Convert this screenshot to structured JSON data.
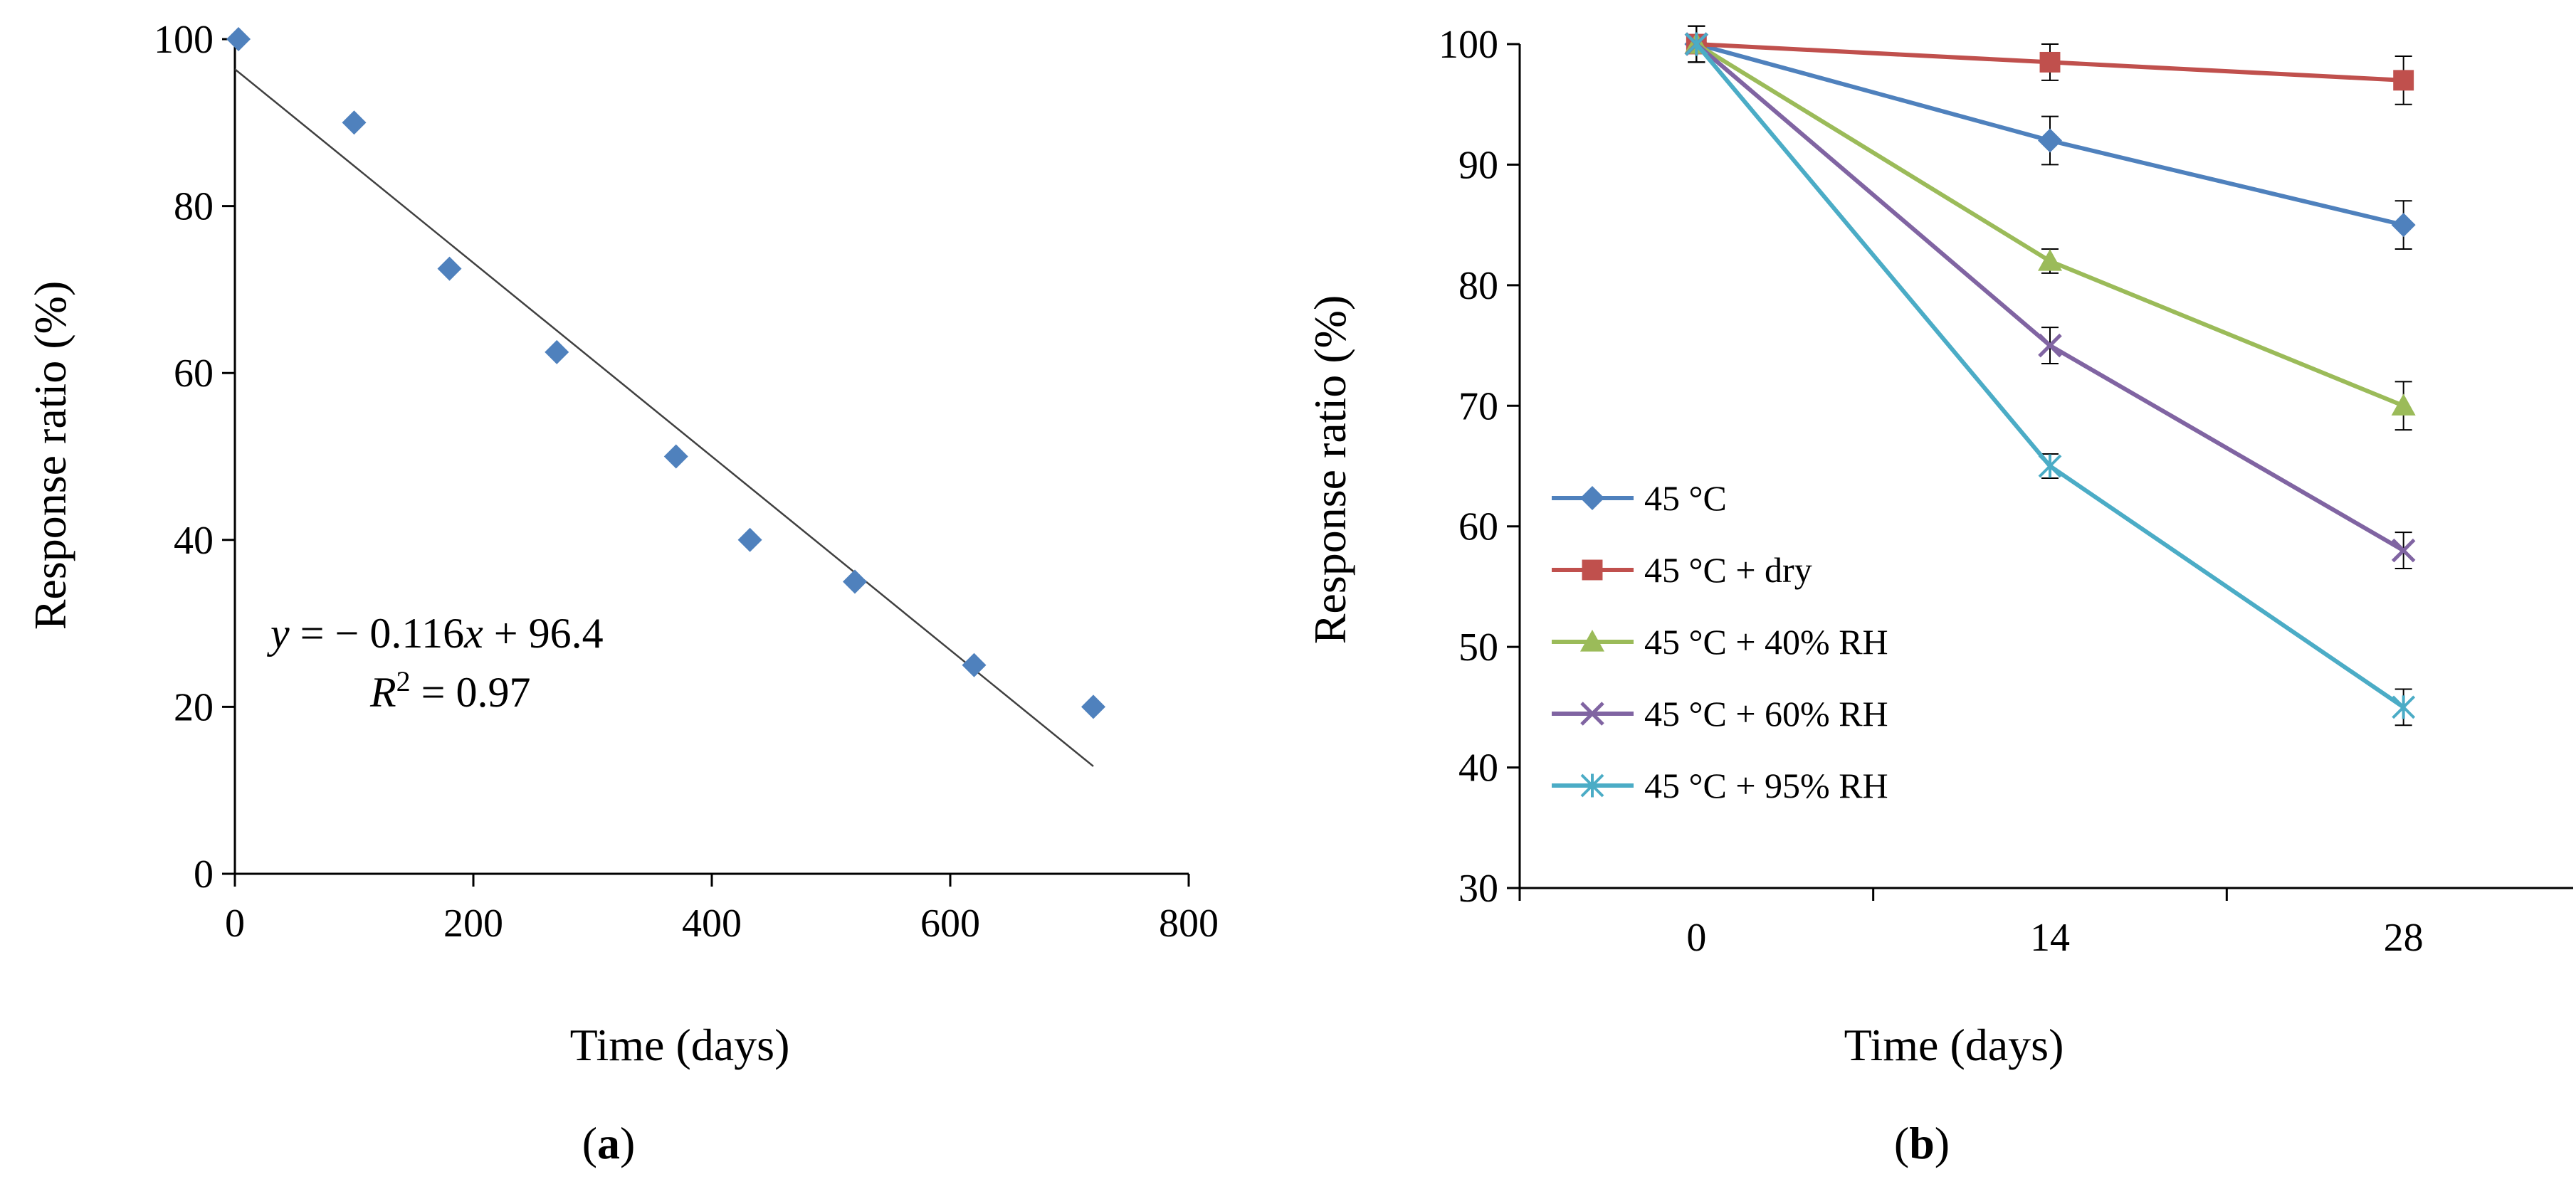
{
  "chart_data": [
    {
      "type": "scatter",
      "panel_label": "a",
      "xlabel": "Time (days)",
      "ylabel": "Response ratio (%)",
      "xlim": [
        0,
        800
      ],
      "ylim": [
        0,
        100
      ],
      "xticks": [
        "0",
        "200",
        "400",
        "600",
        "800"
      ],
      "yticks": [
        "0",
        "20",
        "40",
        "60",
        "80",
        "100"
      ],
      "grid": false,
      "points": [
        {
          "x": 3,
          "y": 100
        },
        {
          "x": 100,
          "y": 90
        },
        {
          "x": 180,
          "y": 72.5
        },
        {
          "x": 270,
          "y": 62.5
        },
        {
          "x": 370,
          "y": 50
        },
        {
          "x": 432,
          "y": 40
        },
        {
          "x": 520,
          "y": 35
        },
        {
          "x": 620,
          "y": 25
        },
        {
          "x": 720,
          "y": 20
        }
      ],
      "point_color": "#4F81BD",
      "fit_line": {
        "x_start": 0,
        "x_end": 720,
        "slope": -0.116,
        "intercept": 96.4,
        "color": "#404040"
      },
      "equation": {
        "y_var": "y",
        "eq_rest": " = − 0.116",
        "x_var": "x",
        "eq_tail": " + 96.4",
        "r_var": "R",
        "r_sup": "2",
        "r_rest": " = 0.97"
      }
    },
    {
      "type": "line",
      "panel_label": "b",
      "xlabel": "Time (days)",
      "ylabel": "Response ratio (%)",
      "ylim": [
        30,
        100
      ],
      "categories": [
        "0",
        "14",
        "28"
      ],
      "yticks": [
        "30",
        "40",
        "50",
        "60",
        "70",
        "80",
        "90",
        "100"
      ],
      "grid": false,
      "legend_position": "lower-left",
      "series": [
        {
          "name": "45 °C",
          "values": [
            100,
            92,
            85
          ],
          "errors": [
            1.5,
            2,
            2
          ],
          "color": "#4F81BD",
          "marker": "diamond"
        },
        {
          "name": "45 °C + dry",
          "values": [
            100,
            98.5,
            97
          ],
          "errors": [
            1.5,
            1.5,
            2
          ],
          "color": "#C0504D",
          "marker": "square"
        },
        {
          "name": "45 °C + 40% RH",
          "values": [
            100,
            82,
            70
          ],
          "errors": [
            1.5,
            1,
            2
          ],
          "color": "#9BBB59",
          "marker": "triangle"
        },
        {
          "name": "45 °C + 60% RH",
          "values": [
            100,
            75,
            58
          ],
          "errors": [
            1.5,
            1.5,
            1.5
          ],
          "color": "#8064A2",
          "marker": "x"
        },
        {
          "name": "45 °C + 95% RH",
          "values": [
            100,
            65,
            45
          ],
          "errors": [
            1.5,
            1,
            1.5
          ],
          "color": "#4BACC6",
          "marker": "star"
        }
      ]
    }
  ]
}
